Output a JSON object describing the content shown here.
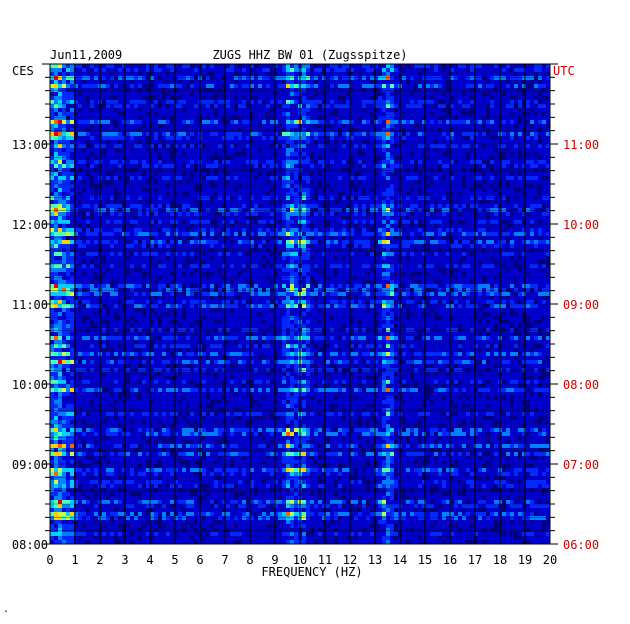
{
  "chart_data": {
    "type": "heatmap",
    "header_date": "Jun11,2009",
    "header_station": "ZUGS HHZ BW 01 (Zugsspitze)",
    "left_axis_label": "CES",
    "right_axis_label": "UTC",
    "xlabel": "FREQUENCY (HZ)",
    "xlim": [
      0,
      20
    ],
    "x_ticks": [
      "0",
      "1",
      "2",
      "3",
      "4",
      "5",
      "6",
      "7",
      "8",
      "9",
      "10",
      "11",
      "12",
      "13",
      "14",
      "15",
      "16",
      "17",
      "18",
      "19",
      "20"
    ],
    "y_ticks_left": [
      "13:00",
      "12:00",
      "11:00",
      "10:00",
      "09:00",
      "08:00"
    ],
    "y_ticks_right": [
      "11:00",
      "10:00",
      "09:00",
      "08:00",
      "07:00",
      "06:00"
    ],
    "time_range_cest": [
      "08:00",
      "13:50"
    ],
    "grid": true,
    "colormap": [
      "#00007f",
      "#0000c8",
      "#0028ff",
      "#0080ff",
      "#00d0ff",
      "#50ffb0",
      "#c8ff40",
      "#ffd000",
      "#ff6000",
      "#e00000"
    ],
    "prominent_frequency_bands_hz": [
      0.3,
      9.6,
      10.1,
      13.5
    ],
    "footer_mark": "."
  },
  "colors": {
    "plot_background": "#0000b4",
    "left_labels": "#000000",
    "right_labels": "#cc0000",
    "grid": "#000000"
  }
}
